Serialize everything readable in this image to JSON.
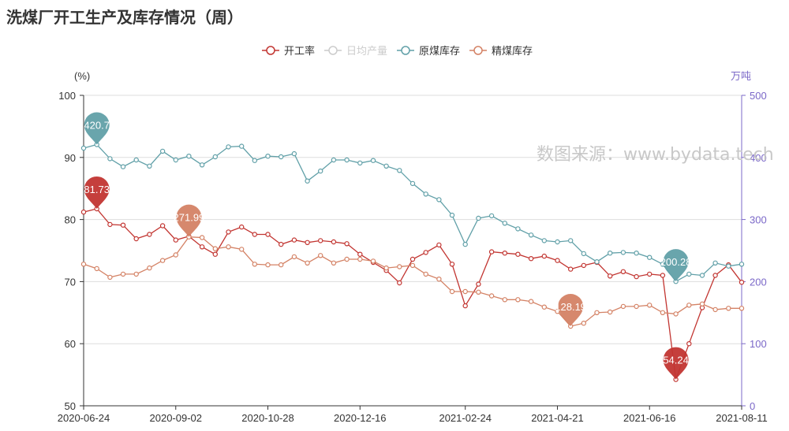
{
  "chart_data": {
    "type": "line",
    "title": "洗煤厂开工生产及库存情况（周）",
    "watermark": "数图来源：www.bydata.tech",
    "y_left": {
      "unit": "(%)",
      "min": 50,
      "max": 100,
      "ticks": [
        50,
        60,
        70,
        80,
        90,
        100
      ]
    },
    "y_right": {
      "unit": "万吨",
      "min": 0,
      "max": 500,
      "ticks": [
        0,
        100,
        200,
        300,
        400,
        500
      ]
    },
    "x_tick_labels": [
      "2020-06-24",
      "2020-09-02",
      "2020-10-28",
      "2020-12-16",
      "2021-02-24",
      "2021-04-21",
      "2021-06-16",
      "2021-08-11"
    ],
    "grid": true,
    "legend_position": "top-center",
    "series": [
      {
        "name": "开工率",
        "axis": "left",
        "color": "#c23531",
        "visible": true,
        "values": [
          81.2,
          81.73,
          79.2,
          79.1,
          76.9,
          77.6,
          79.0,
          76.7,
          77.3,
          75.6,
          74.4,
          78.0,
          78.8,
          77.6,
          77.6,
          76.0,
          76.7,
          76.3,
          76.6,
          76.4,
          76.1,
          74.4,
          73.1,
          71.8,
          69.8,
          73.6,
          74.7,
          75.9,
          72.8,
          66.1,
          69.6,
          74.8,
          74.6,
          74.4,
          73.7,
          74.1,
          73.4,
          72.0,
          72.6,
          73.1,
          70.9,
          71.6,
          70.8,
          71.2,
          71.0,
          54.24,
          60.0,
          65.8,
          71.0,
          72.7,
          69.9
        ],
        "markpoint": {
          "label": "81.73",
          "index": 1
        },
        "markpoint_min": {
          "label": "54.24",
          "index": 45
        }
      },
      {
        "name": "日均产量",
        "axis": "right",
        "color": "#cccccc",
        "visible": false,
        "values": []
      },
      {
        "name": "原煤库存",
        "axis": "right",
        "color": "#61a0a8",
        "visible": true,
        "values": [
          415,
          420.7,
          398,
          385,
          396,
          386,
          410,
          396,
          402,
          388,
          401,
          417,
          418,
          395,
          402,
          401,
          406,
          362,
          378,
          396,
          396,
          391,
          395,
          386,
          379,
          358,
          341,
          332,
          307,
          260,
          302,
          306,
          294,
          285,
          275,
          266,
          264,
          266,
          245,
          232,
          246,
          247,
          246,
          239,
          228,
          200.28,
          212,
          210,
          230,
          225,
          228
        ],
        "markpoint": {
          "label": "420.7",
          "index": 1
        },
        "markpoint_min": {
          "label": "200.28",
          "index": 45
        }
      },
      {
        "name": "精煤库存",
        "axis": "right",
        "color": "#d48265",
        "visible": true,
        "values": [
          228,
          221,
          207,
          212,
          212,
          222,
          234,
          243,
          271.99,
          271,
          253,
          256,
          252,
          228,
          227,
          227,
          240,
          230,
          242,
          230,
          236,
          236,
          233,
          222,
          224,
          226,
          212,
          204,
          184,
          184,
          183,
          177,
          171,
          171,
          168,
          159,
          152,
          128.19,
          133,
          150,
          151,
          160,
          160,
          162,
          150,
          148,
          162,
          164,
          155,
          157,
          157
        ],
        "markpoint": {
          "label": "271.99",
          "index": 8
        },
        "markpoint_min": {
          "label": "128.19",
          "index": 37
        }
      }
    ]
  },
  "legend": {
    "items": [
      {
        "label": "开工率",
        "color": "#c23531",
        "active": true
      },
      {
        "label": "日均产量",
        "color": "#cccccc",
        "active": false
      },
      {
        "label": "原煤库存",
        "color": "#61a0a8",
        "active": true
      },
      {
        "label": "精煤库存",
        "color": "#d48265",
        "active": true
      }
    ]
  },
  "colors": {
    "left_axis": "#333333",
    "right_axis": "#7b68c8",
    "grid": "#dddddd",
    "title": "#333333"
  }
}
